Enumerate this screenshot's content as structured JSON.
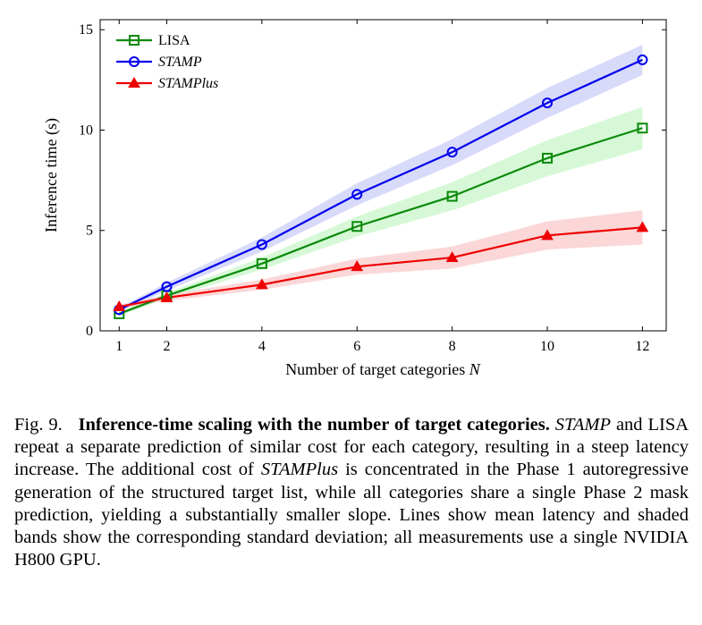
{
  "chart_data": {
    "type": "line",
    "xlabel": "Number of target categories N",
    "xlabel_parts": {
      "text": "Number of target categories ",
      "var": "N"
    },
    "ylabel": "Inference time (s)",
    "xlim": [
      0.6,
      12.5
    ],
    "ylim": [
      0,
      15.5
    ],
    "xticks": [
      1,
      2,
      4,
      6,
      8,
      10,
      12
    ],
    "yticks": [
      0,
      5,
      10,
      15
    ],
    "grid": false,
    "legend_position": "top-left",
    "x": [
      1,
      2,
      4,
      6,
      8,
      10,
      12
    ],
    "series": [
      {
        "name": "LISA",
        "italic": false,
        "color": "#0a8a0a",
        "band_color": "#c8f5c8",
        "marker": "square",
        "values": [
          0.85,
          1.75,
          3.35,
          5.2,
          6.7,
          8.6,
          10.1
        ],
        "std": [
          0.1,
          0.15,
          0.3,
          0.5,
          0.7,
          0.9,
          1.05
        ]
      },
      {
        "name": "STAMP",
        "italic": true,
        "color": "#0000ee",
        "band_color": "#cbcdf7",
        "marker": "circle",
        "values": [
          1.05,
          2.2,
          4.3,
          6.8,
          8.9,
          11.35,
          13.5
        ],
        "std": [
          0.1,
          0.2,
          0.35,
          0.55,
          0.65,
          0.75,
          0.75
        ]
      },
      {
        "name": "STAMPlus",
        "italic": true,
        "color": "#ee0000",
        "band_color": "#f9caca",
        "marker": "triangle",
        "values": [
          1.2,
          1.65,
          2.3,
          3.2,
          3.65,
          4.75,
          5.15
        ],
        "std": [
          0.1,
          0.15,
          0.25,
          0.4,
          0.55,
          0.7,
          0.85
        ]
      }
    ]
  },
  "caption": {
    "fig_label": "Fig. 9.",
    "title": "Inference-time scaling with the number of target categories.",
    "s1": "STAMP",
    "t1": " and LISA repeat a separate prediction of similar cost for each category, resulting in a steep latency increase. The additional cost of ",
    "s2": "STAMPlus",
    "t2": " is concentrated in the Phase 1 autoregressive generation of the structured target list, while all categories share a single Phase 2 mask prediction, yielding a substantially smaller slope. Lines show mean latency and shaded bands show the corresponding standard deviation; all measurements use a single NVIDIA H800 GPU."
  }
}
